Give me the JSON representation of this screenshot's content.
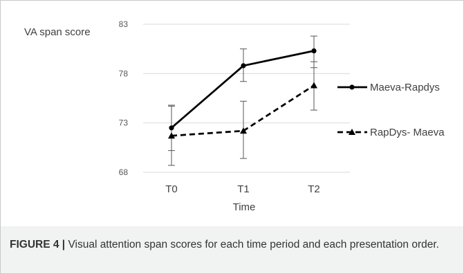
{
  "chart_data": {
    "type": "line",
    "ylabel": "VA span score",
    "xlabel": "Time",
    "categories": [
      "T0",
      "T1",
      "T2"
    ],
    "ylim": [
      68,
      83
    ],
    "yticks": [
      68,
      73,
      78,
      83
    ],
    "grid": true,
    "legend_position": "right",
    "series": [
      {
        "name": "Maeva-Rapdys",
        "values": [
          72.5,
          78.8,
          80.3
        ],
        "error_low": [
          70.2,
          77.2,
          78.6
        ],
        "error_high": [
          74.8,
          80.5,
          81.8
        ],
        "line_style": "solid",
        "marker": "circle",
        "color": "#000000"
      },
      {
        "name": "RapDys- Maeva",
        "values": [
          71.7,
          72.2,
          76.8
        ],
        "error_low": [
          68.7,
          69.4,
          74.3
        ],
        "error_high": [
          74.7,
          75.2,
          79.2
        ],
        "line_style": "dashed",
        "marker": "triangle",
        "color": "#000000"
      }
    ],
    "gridline_color": "#d9d9d9"
  },
  "caption": {
    "label": "FIGURE 4 |",
    "text": " Visual attention span scores for each time period and each presentation order."
  }
}
